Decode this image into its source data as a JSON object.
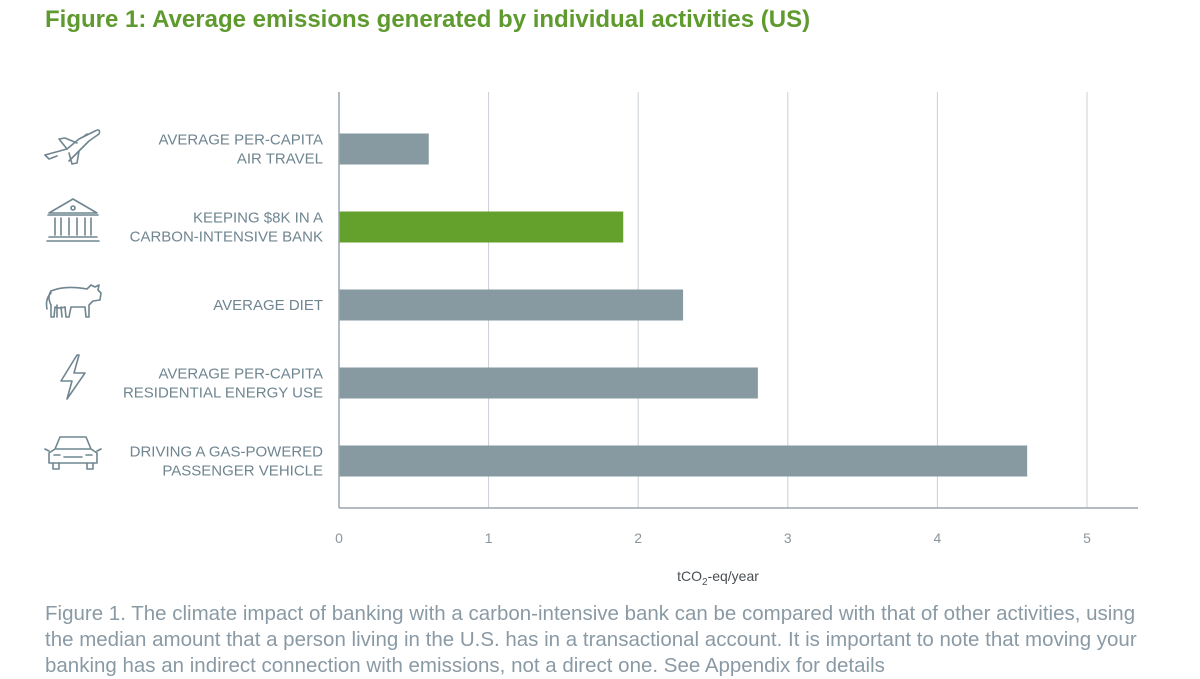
{
  "title": "Figure 1:  Average emissions generated by individual activities (US)",
  "caption": "Figure 1. The climate impact of banking with a carbon-intensive bank can be compared with that of other activities, using the median amount that a person living in the U.S. has in a transactional account. It is important to note that moving your banking has an indirect connection with emissions, not a direct one. See Appendix for details",
  "colors": {
    "title": "#5e9a2d",
    "bar_default": "#879aa2",
    "bar_highlight": "#64a02c",
    "label_text": "#6f8590",
    "grid": "#c8d0d5",
    "axis": "#9aa6ad",
    "caption": "#8a9aa5"
  },
  "chart_data": {
    "type": "bar",
    "orientation": "horizontal",
    "categories": [
      {
        "lines": [
          "AVERAGE PER-CAPITA",
          "AIR TRAVEL"
        ],
        "icon": "airplane-icon"
      },
      {
        "lines": [
          "KEEPING $8K IN A",
          "CARBON-INTENSIVE BANK"
        ],
        "icon": "bank-icon"
      },
      {
        "lines": [
          "AVERAGE DIET"
        ],
        "icon": "cow-icon"
      },
      {
        "lines": [
          "AVERAGE PER-CAPITA",
          "RESIDENTIAL ENERGY USE"
        ],
        "icon": "lightning-icon"
      },
      {
        "lines": [
          "DRIVING A GAS-POWERED",
          "PASSENGER VEHICLE"
        ],
        "icon": "car-icon"
      }
    ],
    "values": [
      0.6,
      1.9,
      2.3,
      2.8,
      4.6
    ],
    "highlight_index": 1,
    "xlim": [
      0,
      5.35
    ],
    "xticks": [
      0,
      1,
      2,
      3,
      4,
      5
    ],
    "xlabel_parts": [
      "tCO",
      "2",
      "-eq/year"
    ],
    "ylabel": "",
    "grid": true,
    "legend": "none"
  }
}
